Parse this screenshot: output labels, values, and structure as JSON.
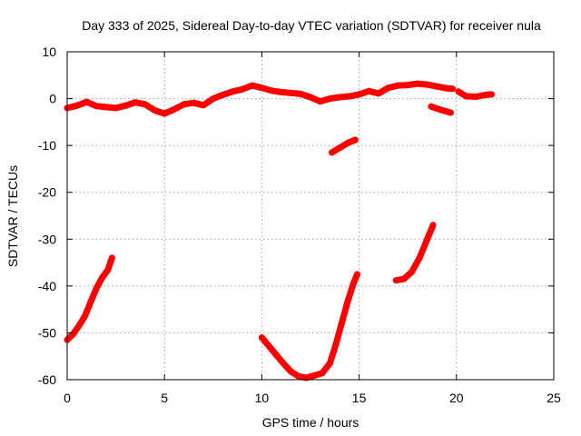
{
  "chart_data": {
    "type": "scatter",
    "title": "Day 333 of 2025, Sidereal Day-to-day VTEC variation (SDTVAR) for receiver nula",
    "xlabel": "GPS time / hours",
    "ylabel": "SDTVAR / TECUs",
    "xlim": [
      0,
      25
    ],
    "ylim": [
      -60,
      10
    ],
    "xticks": [
      0,
      5,
      10,
      15,
      20,
      25
    ],
    "yticks": [
      10,
      0,
      -10,
      -20,
      -30,
      -40,
      -50,
      -60
    ],
    "grid": true,
    "series_color": "#ff0000",
    "series": [
      {
        "name": "main-band",
        "points": [
          [
            0.0,
            -2.0
          ],
          [
            0.5,
            -1.5
          ],
          [
            1.0,
            -0.7
          ],
          [
            1.5,
            -1.6
          ],
          [
            2.0,
            -1.8
          ],
          [
            2.5,
            -2.0
          ],
          [
            3.0,
            -1.5
          ],
          [
            3.5,
            -0.8
          ],
          [
            4.0,
            -1.2
          ],
          [
            4.5,
            -2.5
          ],
          [
            5.0,
            -3.2
          ],
          [
            5.5,
            -2.3
          ],
          [
            6.0,
            -1.2
          ],
          [
            6.5,
            -0.9
          ],
          [
            7.0,
            -1.4
          ],
          [
            7.5,
            0.0
          ],
          [
            8.0,
            0.8
          ],
          [
            8.5,
            1.5
          ],
          [
            9.0,
            2.0
          ],
          [
            9.5,
            2.8
          ],
          [
            10.0,
            2.3
          ],
          [
            10.5,
            1.7
          ],
          [
            11.0,
            1.4
          ],
          [
            11.5,
            1.2
          ],
          [
            12.0,
            1.0
          ],
          [
            12.5,
            0.3
          ],
          [
            13.0,
            -0.6
          ],
          [
            13.5,
            0.0
          ],
          [
            14.0,
            0.3
          ],
          [
            14.5,
            0.5
          ],
          [
            15.0,
            0.9
          ],
          [
            15.5,
            1.6
          ],
          [
            16.0,
            1.1
          ],
          [
            16.5,
            2.3
          ],
          [
            17.0,
            2.8
          ],
          [
            17.5,
            2.9
          ],
          [
            18.0,
            3.2
          ],
          [
            18.5,
            3.0
          ],
          [
            19.0,
            2.6
          ],
          [
            19.5,
            2.2
          ],
          [
            19.8,
            2.1
          ]
        ]
      },
      {
        "name": "segment-late-evening",
        "points": [
          [
            20.1,
            1.5
          ],
          [
            20.5,
            0.5
          ],
          [
            21.0,
            0.4
          ],
          [
            21.5,
            0.8
          ],
          [
            21.8,
            0.9
          ]
        ]
      },
      {
        "name": "segment-dip-19h",
        "points": [
          [
            18.7,
            -1.7
          ],
          [
            19.2,
            -2.4
          ],
          [
            19.7,
            -3.0
          ]
        ]
      },
      {
        "name": "segment-14h",
        "points": [
          [
            13.6,
            -11.5
          ],
          [
            14.0,
            -10.5
          ],
          [
            14.4,
            -9.5
          ],
          [
            14.8,
            -8.8
          ]
        ]
      },
      {
        "name": "segment-early-morning",
        "points": [
          [
            0.0,
            -51.5
          ],
          [
            0.3,
            -50.3
          ],
          [
            0.6,
            -48.5
          ],
          [
            0.9,
            -46.5
          ],
          [
            1.2,
            -43.5
          ],
          [
            1.5,
            -40.5
          ],
          [
            1.8,
            -38.2
          ],
          [
            2.1,
            -36.5
          ],
          [
            2.3,
            -34.0
          ]
        ]
      },
      {
        "name": "segment-midday-trough",
        "points": [
          [
            10.0,
            -51.0
          ],
          [
            10.3,
            -52.5
          ],
          [
            10.7,
            -54.5
          ],
          [
            11.1,
            -56.5
          ],
          [
            11.5,
            -58.3
          ],
          [
            11.9,
            -59.3
          ],
          [
            12.3,
            -59.6
          ],
          [
            12.7,
            -59.1
          ],
          [
            13.1,
            -58.6
          ],
          [
            13.5,
            -56.5
          ],
          [
            13.8,
            -52.5
          ],
          [
            14.1,
            -48.0
          ],
          [
            14.4,
            -43.5
          ],
          [
            14.7,
            -39.5
          ],
          [
            14.9,
            -37.5
          ]
        ]
      },
      {
        "name": "segment-evening-rise",
        "points": [
          [
            16.9,
            -38.8
          ],
          [
            17.3,
            -38.5
          ],
          [
            17.7,
            -37.0
          ],
          [
            18.1,
            -34.0
          ],
          [
            18.5,
            -30.0
          ],
          [
            18.8,
            -27.0
          ]
        ]
      }
    ]
  }
}
